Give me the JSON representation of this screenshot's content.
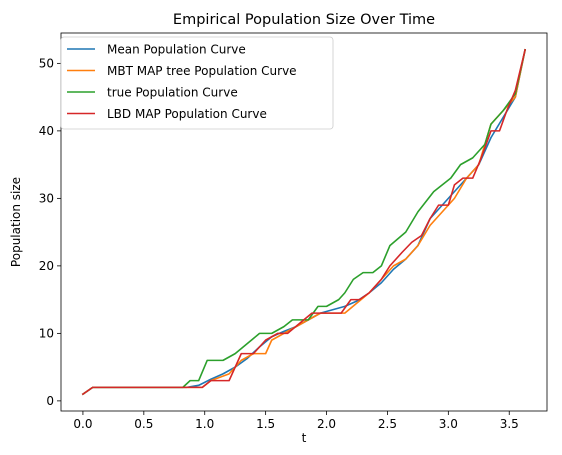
{
  "chart_data": {
    "type": "line",
    "title": "Empirical Population Size Over Time",
    "xlabel": "t",
    "ylabel": "Population size",
    "xlim": [
      -0.18,
      3.81
    ],
    "ylim": [
      -1.5,
      54.5
    ],
    "xticks": [
      0.0,
      0.5,
      1.0,
      1.5,
      2.0,
      2.5,
      3.0,
      3.5
    ],
    "xtick_labels": [
      "0.0",
      "0.5",
      "1.0",
      "1.5",
      "2.0",
      "2.5",
      "3.0",
      "3.5"
    ],
    "yticks": [
      0,
      10,
      20,
      30,
      40,
      50
    ],
    "ytick_labels": [
      "0",
      "10",
      "20",
      "30",
      "40",
      "50"
    ],
    "grid": false,
    "legend_position": "top-left",
    "series": [
      {
        "name": "Mean Population Curve",
        "color": "#1f77b4",
        "points": [
          [
            0.0,
            1
          ],
          [
            0.08,
            2
          ],
          [
            0.5,
            2
          ],
          [
            0.85,
            2
          ],
          [
            0.95,
            2.3
          ],
          [
            1.05,
            3.2
          ],
          [
            1.15,
            4
          ],
          [
            1.25,
            5
          ],
          [
            1.35,
            6.3
          ],
          [
            1.45,
            8
          ],
          [
            1.55,
            9.5
          ],
          [
            1.65,
            10.3
          ],
          [
            1.75,
            11
          ],
          [
            1.85,
            12
          ],
          [
            1.95,
            13
          ],
          [
            2.05,
            13.5
          ],
          [
            2.15,
            14
          ],
          [
            2.25,
            14.8
          ],
          [
            2.35,
            16
          ],
          [
            2.45,
            17.5
          ],
          [
            2.55,
            19.5
          ],
          [
            2.65,
            21
          ],
          [
            2.75,
            23
          ],
          [
            2.85,
            27
          ],
          [
            2.95,
            29
          ],
          [
            3.05,
            31
          ],
          [
            3.15,
            33
          ],
          [
            3.25,
            35
          ],
          [
            3.35,
            39
          ],
          [
            3.45,
            42
          ],
          [
            3.55,
            45
          ],
          [
            3.63,
            52
          ]
        ]
      },
      {
        "name": "MBT MAP tree Population Curve",
        "color": "#ff7f0e",
        "points": [
          [
            0.0,
            1
          ],
          [
            0.08,
            2
          ],
          [
            0.5,
            2
          ],
          [
            0.98,
            2
          ],
          [
            1.05,
            3
          ],
          [
            1.2,
            4
          ],
          [
            1.3,
            6
          ],
          [
            1.4,
            7
          ],
          [
            1.5,
            7
          ],
          [
            1.55,
            9
          ],
          [
            1.65,
            10
          ],
          [
            1.75,
            11
          ],
          [
            1.85,
            12
          ],
          [
            1.95,
            13
          ],
          [
            2.05,
            13
          ],
          [
            2.15,
            13
          ],
          [
            2.25,
            14.5
          ],
          [
            2.35,
            16
          ],
          [
            2.45,
            18
          ],
          [
            2.55,
            20
          ],
          [
            2.65,
            21
          ],
          [
            2.75,
            23
          ],
          [
            2.85,
            26
          ],
          [
            2.95,
            28
          ],
          [
            3.05,
            30
          ],
          [
            3.15,
            33
          ],
          [
            3.25,
            35
          ],
          [
            3.35,
            41
          ],
          [
            3.45,
            43
          ],
          [
            3.55,
            45
          ],
          [
            3.63,
            52
          ]
        ]
      },
      {
        "name": "true Population Curve",
        "color": "#2ca02c",
        "points": [
          [
            0.0,
            1
          ],
          [
            0.08,
            2
          ],
          [
            0.5,
            2
          ],
          [
            0.82,
            2
          ],
          [
            0.88,
            3
          ],
          [
            0.95,
            3
          ],
          [
            1.02,
            6
          ],
          [
            1.15,
            6
          ],
          [
            1.25,
            7
          ],
          [
            1.35,
            8.5
          ],
          [
            1.45,
            10
          ],
          [
            1.55,
            10
          ],
          [
            1.65,
            11
          ],
          [
            1.72,
            12
          ],
          [
            1.85,
            12
          ],
          [
            1.93,
            14
          ],
          [
            2.0,
            14
          ],
          [
            2.1,
            15
          ],
          [
            2.15,
            16
          ],
          [
            2.22,
            18
          ],
          [
            2.3,
            19
          ],
          [
            2.38,
            19
          ],
          [
            2.45,
            20
          ],
          [
            2.52,
            23
          ],
          [
            2.65,
            25
          ],
          [
            2.75,
            28
          ],
          [
            2.88,
            31
          ],
          [
            3.02,
            33
          ],
          [
            3.1,
            35
          ],
          [
            3.2,
            36
          ],
          [
            3.3,
            38
          ],
          [
            3.35,
            41
          ],
          [
            3.45,
            43
          ],
          [
            3.55,
            45.5
          ],
          [
            3.63,
            52
          ]
        ]
      },
      {
        "name": "LBD MAP Population Curve",
        "color": "#d62728",
        "points": [
          [
            0.0,
            1
          ],
          [
            0.08,
            2
          ],
          [
            0.5,
            2
          ],
          [
            0.9,
            2
          ],
          [
            0.98,
            2
          ],
          [
            1.05,
            3
          ],
          [
            1.2,
            3
          ],
          [
            1.3,
            7
          ],
          [
            1.4,
            7
          ],
          [
            1.5,
            9
          ],
          [
            1.6,
            10
          ],
          [
            1.68,
            10
          ],
          [
            1.78,
            11.5
          ],
          [
            1.88,
            13
          ],
          [
            2.0,
            13
          ],
          [
            2.12,
            13
          ],
          [
            2.2,
            15
          ],
          [
            2.27,
            15
          ],
          [
            2.35,
            16
          ],
          [
            2.45,
            18
          ],
          [
            2.52,
            20
          ],
          [
            2.62,
            22
          ],
          [
            2.7,
            23.5
          ],
          [
            2.78,
            24.5
          ],
          [
            2.85,
            27
          ],
          [
            2.92,
            29
          ],
          [
            3.0,
            29
          ],
          [
            3.05,
            32
          ],
          [
            3.12,
            33
          ],
          [
            3.2,
            33
          ],
          [
            3.27,
            36
          ],
          [
            3.35,
            40
          ],
          [
            3.42,
            40
          ],
          [
            3.48,
            43
          ],
          [
            3.55,
            46
          ],
          [
            3.63,
            52
          ]
        ]
      }
    ]
  }
}
